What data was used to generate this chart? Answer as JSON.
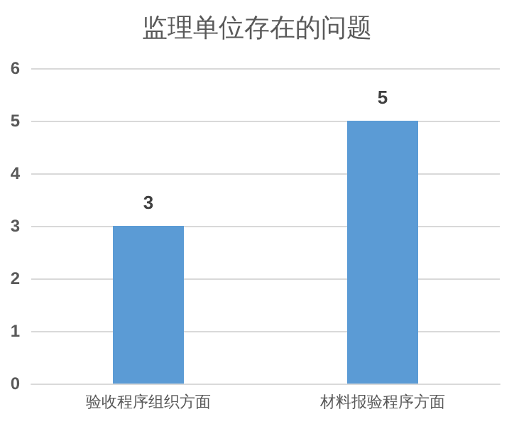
{
  "chart_data": {
    "type": "bar",
    "title": "监理单位存在的问题",
    "categories": [
      "验收程序组织方面",
      "材料报验程序方面"
    ],
    "values": [
      3,
      5
    ],
    "color": "#5b9bd5",
    "ylim": [
      0,
      6
    ],
    "yticks": [
      0,
      1,
      2,
      3,
      4,
      5,
      6
    ],
    "grid": "y",
    "data_labels": true
  }
}
